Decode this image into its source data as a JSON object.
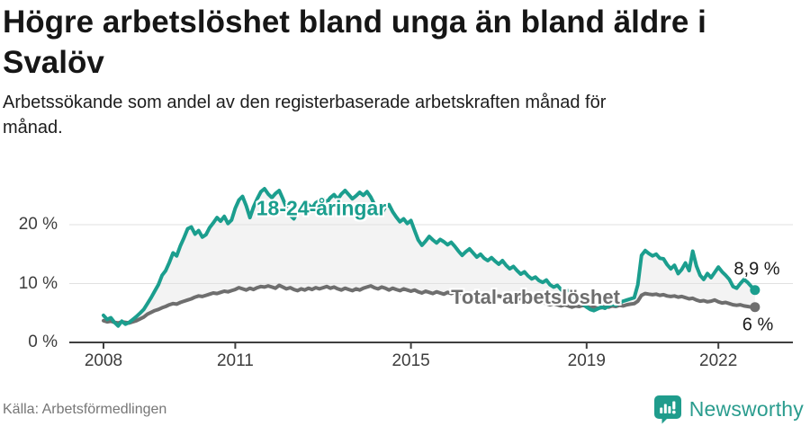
{
  "header": {
    "title": {
      "line1": "Högre arbetslöshet bland unga än bland äldre i",
      "line2": "Svalöv"
    },
    "subtitle": {
      "line1": "Arbetssökande som andel av den registerbaserade arbetskraften månad för",
      "line2": "månad."
    }
  },
  "footer": {
    "source": "Källa: Arbetsförmedlingen",
    "brand_name": "Newsworthy",
    "brand_color": "#2a9c8e"
  },
  "chart_data": {
    "type": "line",
    "title": "Högre arbetslöshet bland unga än bland äldre i Svalöv",
    "xlabel": "",
    "ylabel": "",
    "x_start_year": 2008,
    "x_frequency": "monthly",
    "x_end": "Nov 2022",
    "ylim": [
      0,
      26
    ],
    "grid": "horizontal",
    "area_fill": "#f3f3f3",
    "gridline_color": "#e1e1e1",
    "axis_color": "#3f3f3f",
    "x_ticks": [
      {
        "year": 2008,
        "label": "2008"
      },
      {
        "year": 2011,
        "label": "2011"
      },
      {
        "year": 2015,
        "label": "2015"
      },
      {
        "year": 2019,
        "label": "2019"
      },
      {
        "year": 2022,
        "label": "2022"
      }
    ],
    "y_ticks": [
      {
        "value": 0,
        "label": "0 %"
      },
      {
        "value": 10,
        "label": "10 %"
      },
      {
        "value": 20,
        "label": "20 %"
      }
    ],
    "series": [
      {
        "name": "18-24-åringar",
        "color": "#1b9e8e",
        "end_label": "8,9 %",
        "end_value": 8.9,
        "values": [
          4.6,
          3.9,
          4.2,
          3.4,
          2.8,
          3.6,
          3.1,
          3.4,
          3.9,
          4.4,
          5.0,
          5.6,
          6.6,
          7.6,
          8.7,
          9.8,
          11.4,
          12.2,
          13.6,
          15.2,
          14.7,
          16.4,
          17.8,
          19.3,
          19.6,
          18.4,
          19.0,
          17.9,
          18.3,
          19.5,
          20.3,
          21.2,
          20.6,
          21.4,
          20.2,
          20.8,
          22.8,
          24.2,
          24.8,
          23.2,
          21.2,
          23.0,
          24.4,
          25.6,
          26.1,
          25.2,
          24.6,
          25.3,
          25.8,
          24.4,
          22.9,
          21.6,
          21.0,
          22.2,
          23.2,
          22.5,
          23.4,
          22.8,
          23.7,
          24.1,
          24.5,
          23.8,
          24.6,
          25.1,
          24.3,
          25.2,
          25.8,
          25.1,
          24.4,
          24.9,
          25.5,
          25.0,
          25.6,
          24.7,
          23.5,
          22.4,
          21.9,
          23.0,
          23.4,
          22.2,
          21.3,
          20.5,
          21.0,
          20.2,
          20.7,
          19.0,
          17.4,
          16.5,
          17.2,
          18.0,
          17.4,
          16.9,
          17.5,
          17.1,
          16.6,
          17.0,
          16.3,
          15.5,
          14.8,
          15.4,
          15.9,
          15.2,
          14.5,
          15.0,
          14.3,
          13.9,
          14.4,
          13.8,
          13.3,
          13.9,
          13.1,
          12.5,
          12.9,
          12.2,
          11.6,
          12.0,
          11.3,
          10.8,
          11.1,
          10.5,
          10.2,
          10.6,
          9.8,
          9.4,
          9.7,
          9.0,
          8.5,
          8.8,
          8.1,
          7.5,
          7.0,
          6.5,
          6.0,
          5.6,
          5.4,
          5.7,
          6.0,
          5.8,
          6.2,
          6.5,
          6.3,
          6.7,
          7.0,
          7.2,
          7.4,
          7.6,
          9.8,
          14.8,
          15.6,
          15.1,
          14.7,
          15.0,
          14.3,
          14.2,
          13.2,
          12.5,
          13.1,
          11.7,
          12.4,
          13.5,
          12.2,
          15.5,
          13.0,
          11.4,
          10.7,
          11.7,
          11.0,
          11.9,
          12.8,
          12.0,
          11.4,
          10.7,
          9.5,
          9.2,
          10.0,
          10.7,
          10.2,
          9.5,
          8.9
        ]
      },
      {
        "name": "Total arbetslöshet",
        "color": "#6e6e6e",
        "end_label": "6 %",
        "end_value": 6.0,
        "values": [
          3.7,
          3.5,
          3.6,
          3.4,
          3.3,
          3.5,
          3.4,
          3.3,
          3.5,
          3.7,
          4.0,
          4.3,
          4.8,
          5.1,
          5.4,
          5.6,
          5.9,
          6.1,
          6.4,
          6.6,
          6.5,
          6.8,
          7.0,
          7.2,
          7.4,
          7.7,
          7.9,
          7.8,
          8.0,
          8.2,
          8.4,
          8.3,
          8.5,
          8.7,
          8.6,
          8.8,
          9.0,
          9.3,
          9.1,
          8.9,
          9.2,
          9.0,
          9.3,
          9.5,
          9.4,
          9.6,
          9.4,
          9.2,
          9.7,
          9.4,
          9.1,
          9.3,
          9.0,
          8.8,
          9.1,
          8.9,
          9.2,
          9.0,
          9.3,
          9.1,
          9.3,
          9.5,
          9.2,
          9.4,
          9.1,
          8.9,
          9.2,
          9.0,
          8.8,
          9.1,
          8.9,
          9.2,
          9.4,
          9.6,
          9.3,
          9.1,
          9.4,
          9.2,
          8.9,
          9.2,
          9.0,
          8.8,
          9.1,
          8.9,
          8.7,
          8.9,
          8.6,
          8.4,
          8.7,
          8.5,
          8.3,
          8.6,
          8.4,
          8.2,
          8.5,
          8.3,
          8.5,
          8.3,
          8.1,
          8.4,
          8.2,
          8.0,
          8.3,
          8.1,
          7.9,
          8.2,
          8.0,
          7.8,
          7.9,
          7.7,
          7.5,
          7.7,
          7.5,
          7.3,
          7.5,
          7.3,
          7.1,
          7.3,
          7.1,
          6.9,
          6.8,
          6.6,
          6.4,
          6.6,
          6.4,
          6.2,
          6.4,
          6.2,
          6.0,
          6.2,
          6.1,
          6.3,
          6.1,
          5.9,
          6.0,
          5.8,
          5.9,
          6.1,
          6.0,
          6.2,
          6.1,
          6.3,
          6.2,
          6.4,
          6.5,
          6.6,
          7.0,
          8.0,
          8.3,
          8.2,
          8.1,
          8.2,
          8.0,
          8.1,
          7.9,
          7.8,
          7.9,
          7.7,
          7.8,
          7.6,
          7.4,
          7.5,
          7.2,
          7.0,
          7.1,
          6.9,
          7.0,
          7.2,
          6.9,
          6.7,
          6.8,
          6.6,
          6.4,
          6.3,
          6.4,
          6.2,
          6.1,
          6.0,
          6.0
        ]
      }
    ]
  }
}
